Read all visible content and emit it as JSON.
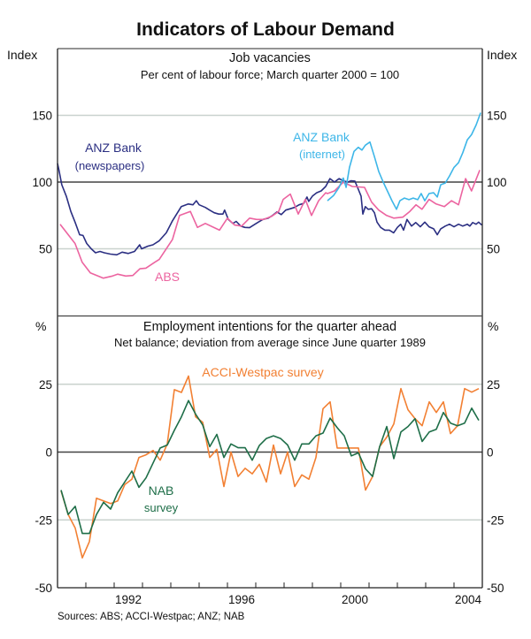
{
  "chart_data": {
    "title": "Indicators of Labour Demand",
    "source": "Sources: ABS; ACCI-Westpac; ANZ; NAB",
    "x_axis": {
      "range": [
        1990,
        2005
      ],
      "tick_labels": [
        "1992",
        "1996",
        "2000",
        "2004"
      ],
      "tick_label_years": [
        1992,
        1996,
        2000,
        2004
      ]
    },
    "panels": [
      {
        "type": "line",
        "title": "Job vacancies",
        "subtitle": "Per cent of labour force; March quarter 2000 = 100",
        "ylabel_left": "Index",
        "ylabel_right": "Index",
        "ylim": [
          0,
          200
        ],
        "yticks": [
          50,
          100,
          150
        ],
        "reference_line": 100,
        "grid": true,
        "series": [
          {
            "name": "ANZ Bank (newspapers)",
            "label_lines": [
              "ANZ Bank",
              "(newspapers)"
            ],
            "color": "#2b2f82",
            "frequency": "monthly",
            "points": [
              [
                1990.0,
                114
              ],
              [
                1990.05,
                109
              ],
              [
                1990.15,
                98
              ],
              [
                1990.31,
                89.5
              ],
              [
                1990.47,
                78
              ],
              [
                1990.62,
                70
              ],
              [
                1990.78,
                60.5
              ],
              [
                1990.9,
                60
              ],
              [
                1991.03,
                54
              ],
              [
                1991.19,
                50
              ],
              [
                1991.34,
                47
              ],
              [
                1991.5,
                48
              ],
              [
                1991.65,
                47
              ],
              [
                1991.87,
                46
              ],
              [
                1992.09,
                45.5
              ],
              [
                1992.28,
                47.5
              ],
              [
                1992.5,
                46.5
              ],
              [
                1992.72,
                48
              ],
              [
                1992.9,
                53
              ],
              [
                1992.97,
                50
              ],
              [
                1993.19,
                52
              ],
              [
                1993.37,
                53
              ],
              [
                1993.59,
                56
              ],
              [
                1993.84,
                62
              ],
              [
                1994.06,
                71
              ],
              [
                1994.37,
                81.6
              ],
              [
                1994.62,
                83.6
              ],
              [
                1994.78,
                83
              ],
              [
                1994.9,
                86
              ],
              [
                1995.0,
                83
              ],
              [
                1995.22,
                81
              ],
              [
                1995.37,
                79
              ],
              [
                1995.53,
                77
              ],
              [
                1995.69,
                76
              ],
              [
                1995.84,
                76
              ],
              [
                1995.9,
                79
              ],
              [
                1996.03,
                72
              ],
              [
                1996.19,
                69
              ],
              [
                1996.31,
                70.5
              ],
              [
                1996.47,
                67
              ],
              [
                1996.62,
                66
              ],
              [
                1996.78,
                65.8
              ],
              [
                1996.94,
                68
              ],
              [
                1997.09,
                70
              ],
              [
                1997.25,
                72
              ],
              [
                1997.44,
                73
              ],
              [
                1997.59,
                75
              ],
              [
                1997.75,
                77.6
              ],
              [
                1997.9,
                75.6
              ],
              [
                1998.06,
                79
              ],
              [
                1998.22,
                80
              ],
              [
                1998.37,
                81
              ],
              [
                1998.53,
                83
              ],
              [
                1998.69,
                84
              ],
              [
                1998.81,
                88.8
              ],
              [
                1998.87,
                85.5
              ],
              [
                1999.0,
                89.5
              ],
              [
                1999.15,
                92
              ],
              [
                1999.31,
                93.4
              ],
              [
                1999.47,
                96.7
              ],
              [
                1999.62,
                102.6
              ],
              [
                1999.78,
                100
              ],
              [
                1999.94,
                102.6
              ],
              [
                2000.09,
                101
              ],
              [
                2000.25,
                100
              ],
              [
                2000.37,
                101
              ],
              [
                2000.5,
                100.7
              ],
              [
                2000.62,
                94.7
              ],
              [
                2000.72,
                89.5
              ],
              [
                2000.78,
                76
              ],
              [
                2000.87,
                81.6
              ],
              [
                2000.97,
                79.6
              ],
              [
                2001.09,
                80
              ],
              [
                2001.19,
                77
              ],
              [
                2001.28,
                70
              ],
              [
                2001.41,
                66
              ],
              [
                2001.56,
                64
              ],
              [
                2001.72,
                64
              ],
              [
                2001.87,
                62
              ],
              [
                2002.0,
                66
              ],
              [
                2002.12,
                68.4
              ],
              [
                2002.22,
                64
              ],
              [
                2002.34,
                72
              ],
              [
                2002.5,
                67
              ],
              [
                2002.65,
                69.7
              ],
              [
                2002.81,
                66.5
              ],
              [
                2002.97,
                70
              ],
              [
                2003.12,
                66.5
              ],
              [
                2003.28,
                65
              ],
              [
                2003.41,
                60.5
              ],
              [
                2003.53,
                65
              ],
              [
                2003.69,
                67
              ],
              [
                2003.84,
                68.4
              ],
              [
                2004.0,
                66.5
              ],
              [
                2004.16,
                68.4
              ],
              [
                2004.31,
                67
              ],
              [
                2004.47,
                68.4
              ],
              [
                2004.56,
                67
              ],
              [
                2004.66,
                69.7
              ],
              [
                2004.78,
                68.4
              ],
              [
                2004.87,
                70
              ],
              [
                2004.98,
                67.8
              ]
            ]
          },
          {
            "name": "ABS",
            "label_lines": [
              "ABS"
            ],
            "color": "#ec64a0",
            "frequency": "quarterly",
            "points": [
              [
                1990.09,
                68.4
              ],
              [
                1990.62,
                54
              ],
              [
                1990.87,
                40
              ],
              [
                1991.16,
                32
              ],
              [
                1991.62,
                28
              ],
              [
                1991.94,
                29.6
              ],
              [
                1992.12,
                31
              ],
              [
                1992.41,
                29.6
              ],
              [
                1992.66,
                30
              ],
              [
                1992.91,
                35
              ],
              [
                1993.12,
                35.5
              ],
              [
                1993.44,
                40
              ],
              [
                1993.59,
                42
              ],
              [
                1994.06,
                57
              ],
              [
                1994.31,
                75
              ],
              [
                1994.69,
                78
              ],
              [
                1994.94,
                66
              ],
              [
                1995.22,
                69
              ],
              [
                1995.72,
                64
              ],
              [
                1996.0,
                73
              ],
              [
                1996.25,
                67.8
              ],
              [
                1996.5,
                67
              ],
              [
                1996.78,
                73
              ],
              [
                1997.03,
                72
              ],
              [
                1997.28,
                72
              ],
              [
                1997.56,
                74.3
              ],
              [
                1997.81,
                78
              ],
              [
                1997.97,
                87
              ],
              [
                1998.22,
                91
              ],
              [
                1998.5,
                76
              ],
              [
                1998.75,
                87
              ],
              [
                1998.97,
                75
              ],
              [
                1999.22,
                86
              ],
              [
                1999.47,
                92
              ],
              [
                1999.53,
                91.4
              ],
              [
                1999.78,
                93.4
              ],
              [
                2000.09,
                100
              ],
              [
                2000.41,
                96.7
              ],
              [
                2000.84,
                96
              ],
              [
                2001.09,
                85
              ],
              [
                2001.34,
                79
              ],
              [
                2001.62,
                75
              ],
              [
                2001.87,
                73
              ],
              [
                2002.19,
                73.7
              ],
              [
                2002.44,
                78
              ],
              [
                2002.66,
                83
              ],
              [
                2002.87,
                79.6
              ],
              [
                2003.12,
                87
              ],
              [
                2003.37,
                83.6
              ],
              [
                2003.66,
                81.6
              ],
              [
                2003.91,
                86
              ],
              [
                2004.16,
                83
              ],
              [
                2004.41,
                102.6
              ],
              [
                2004.62,
                93.4
              ],
              [
                2004.91,
                109
              ]
            ]
          },
          {
            "name": "ANZ Bank (internet)",
            "label_lines": [
              "ANZ Bank",
              "(internet)"
            ],
            "color": "#3db6e8",
            "frequency": "monthly",
            "points": [
              [
                1999.53,
                86
              ],
              [
                1999.75,
                90
              ],
              [
                1999.94,
                96
              ],
              [
                2000.09,
                103
              ],
              [
                2000.19,
                96
              ],
              [
                2000.31,
                111
              ],
              [
                2000.47,
                123
              ],
              [
                2000.62,
                126
              ],
              [
                2000.75,
                124
              ],
              [
                2000.87,
                127.6
              ],
              [
                2001.03,
                130
              ],
              [
                2001.19,
                119
              ],
              [
                2001.34,
                108
              ],
              [
                2001.5,
                100
              ],
              [
                2001.66,
                92.8
              ],
              [
                2001.81,
                86
              ],
              [
                2001.97,
                79.6
              ],
              [
                2002.09,
                86
              ],
              [
                2002.25,
                88
              ],
              [
                2002.41,
                86.8
              ],
              [
                2002.56,
                88
              ],
              [
                2002.72,
                86.8
              ],
              [
                2002.84,
                91.4
              ],
              [
                2002.97,
                86
              ],
              [
                2003.12,
                91.4
              ],
              [
                2003.28,
                92
              ],
              [
                2003.41,
                88.8
              ],
              [
                2003.53,
                98
              ],
              [
                2003.69,
                99.3
              ],
              [
                2003.84,
                104.6
              ],
              [
                2004.0,
                111
              ],
              [
                2004.16,
                114.5
              ],
              [
                2004.31,
                122
              ],
              [
                2004.47,
                131.6
              ],
              [
                2004.62,
                135.5
              ],
              [
                2004.78,
                142.8
              ],
              [
                2004.94,
                152
              ]
            ]
          }
        ]
      },
      {
        "type": "line",
        "title": "Employment intentions for the quarter ahead",
        "subtitle": "Net balance; deviation from average since June quarter 1989",
        "ylabel_left": "%",
        "ylabel_right": "%",
        "ylim": [
          -50,
          50
        ],
        "yticks": [
          -50,
          -25,
          0,
          25
        ],
        "reference_line": 0,
        "grid": true,
        "quarters_start": 1990.125,
        "quarter_step": 0.25,
        "series": [
          {
            "name": "ACCI-Westpac survey",
            "label_lines": [
              "ACCI-Westpac survey"
            ],
            "color": "#f28033",
            "values": [
              -14.3,
              -23,
              -28,
              -39,
              -33,
              -17,
              -18,
              -19,
              -18,
              -12,
              -10,
              -2,
              -1,
              0.6,
              -3,
              3,
              23,
              22,
              28,
              13,
              11,
              -2,
              1,
              -12.7,
              0,
              -9,
              -6,
              -8,
              -4.5,
              -11,
              2.6,
              -8,
              0,
              -12.7,
              -8.4,
              -10,
              -2,
              16,
              18.5,
              1.5,
              1.5,
              1.5,
              1.5,
              -14,
              -9,
              2,
              5.5,
              10.4,
              23.4,
              15.6,
              12.3,
              9.7,
              18.5,
              14.6,
              18.5,
              6.8,
              9.7,
              23.4,
              22.1,
              23.4
            ]
          },
          {
            "name": "NAB survey",
            "label_lines": [
              "NAB",
              "survey"
            ],
            "color": "#1e6e48",
            "values": [
              -14,
              -23,
              -20,
              -30,
              -30,
              -23,
              -18.5,
              -21,
              -15,
              -11,
              -7,
              -13,
              -9.5,
              -4,
              1.5,
              2.6,
              8,
              13,
              19,
              14,
              10,
              2,
              6.5,
              -2,
              3,
              1.6,
              1.6,
              -3,
              2.4,
              5,
              6,
              5,
              2.6,
              -3,
              3,
              3,
              6,
              7,
              12.5,
              9,
              6,
              -1.4,
              -0.3,
              -6.2,
              -9,
              2,
              9.4,
              -2.4,
              7.4,
              9.4,
              12.3,
              3.9,
              7.4,
              8.4,
              14.6,
              10.7,
              9.7,
              10.7,
              16.2,
              11.7
            ]
          }
        ]
      }
    ]
  }
}
